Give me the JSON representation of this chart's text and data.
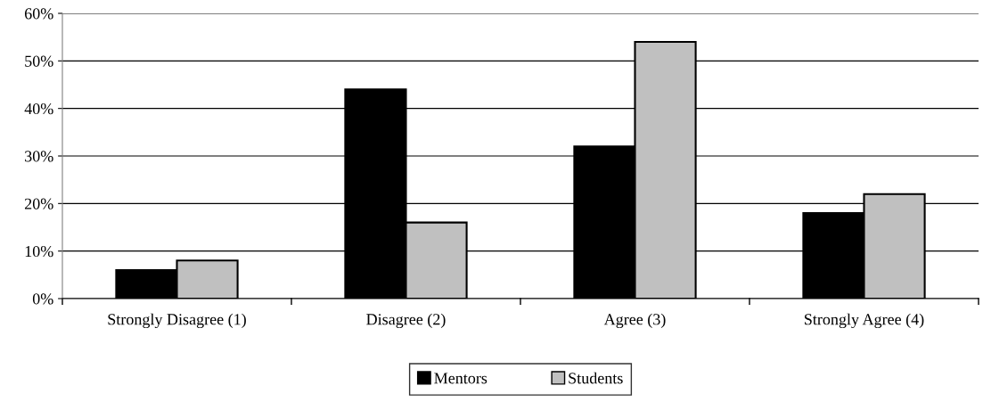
{
  "chart_data": {
    "type": "bar",
    "categories": [
      "Strongly Disagree (1)",
      "Disagree (2)",
      "Agree (3)",
      "Strongly Agree (4)"
    ],
    "series": [
      {
        "name": "Mentors",
        "color": "#000000",
        "values": [
          6,
          44,
          32,
          18
        ]
      },
      {
        "name": "Students",
        "color": "#c0c0c0",
        "values": [
          8,
          16,
          54,
          22
        ]
      }
    ],
    "ylim": [
      0,
      60
    ],
    "yticks": [
      {
        "value": 0,
        "label": "0%"
      },
      {
        "value": 10,
        "label": "10%"
      },
      {
        "value": 20,
        "label": "20%"
      },
      {
        "value": 30,
        "label": "30%"
      },
      {
        "value": 40,
        "label": "40%"
      },
      {
        "value": 50,
        "label": "50%"
      },
      {
        "value": 60,
        "label": "60%"
      }
    ],
    "grid": "y",
    "legend": "bottom"
  }
}
